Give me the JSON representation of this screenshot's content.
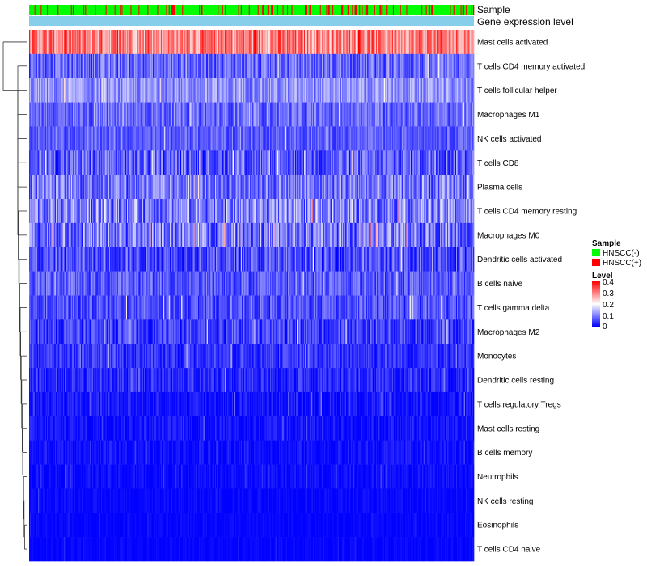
{
  "chart_data": {
    "type": "heatmap",
    "title": "",
    "annotation_tracks": [
      {
        "label": "Sample",
        "kind": "categorical"
      },
      {
        "label": "Gene expression level",
        "kind": "constant"
      }
    ],
    "rows": [
      {
        "label": "Mast cells activated",
        "mean": 0.3,
        "spread": 0.08
      },
      {
        "label": "T cells CD4 memory activated",
        "mean": 0.08,
        "spread": 0.06
      },
      {
        "label": "T cells follicular helper",
        "mean": 0.11,
        "spread": 0.05
      },
      {
        "label": "Macrophages M1",
        "mean": 0.08,
        "spread": 0.05
      },
      {
        "label": "NK cells activated",
        "mean": 0.07,
        "spread": 0.04
      },
      {
        "label": "T cells CD8",
        "mean": 0.07,
        "spread": 0.07
      },
      {
        "label": "Plasma cells",
        "mean": 0.09,
        "spread": 0.07
      },
      {
        "label": "T cells CD4 memory resting",
        "mean": 0.1,
        "spread": 0.08
      },
      {
        "label": "Macrophages M0",
        "mean": 0.09,
        "spread": 0.08
      },
      {
        "label": "Dendritic cells activated",
        "mean": 0.06,
        "spread": 0.06
      },
      {
        "label": "B cells naive",
        "mean": 0.07,
        "spread": 0.05
      },
      {
        "label": "T cells gamma delta",
        "mean": 0.06,
        "spread": 0.05
      },
      {
        "label": "Macrophages M2",
        "mean": 0.05,
        "spread": 0.05
      },
      {
        "label": "Monocytes",
        "mean": 0.04,
        "spread": 0.04
      },
      {
        "label": "Dendritic cells resting",
        "mean": 0.03,
        "spread": 0.04
      },
      {
        "label": "T cells regulatory  Tregs",
        "mean": 0.015,
        "spread": 0.03
      },
      {
        "label": "Mast cells resting",
        "mean": 0.012,
        "spread": 0.03
      },
      {
        "label": "B cells memory",
        "mean": 0.01,
        "spread": 0.025
      },
      {
        "label": "Neutrophils",
        "mean": 0.008,
        "spread": 0.02
      },
      {
        "label": "NK cells resting",
        "mean": 0.005,
        "spread": 0.015
      },
      {
        "label": "Eosinophils",
        "mean": 0.003,
        "spread": 0.012
      },
      {
        "label": "T cells CD4 naive",
        "mean": 0.003,
        "spread": 0.012
      }
    ],
    "n_columns": 500,
    "positive_fraction": 0.2,
    "value_range": [
      0,
      0.4
    ],
    "dendrogram": "rows, left side",
    "colors": {
      "low": "#0000ff",
      "mid": "#ffffff",
      "high": "#ff0000",
      "negative": "#00ff00",
      "positive": "#ff0000",
      "expression_track": "#87ceeb"
    }
  },
  "legend": {
    "sample": {
      "title": "Sample",
      "items": [
        {
          "label": "HNSCC(-)",
          "color": "#00ff00"
        },
        {
          "label": "HNSCC(+)",
          "color": "#ff0000"
        }
      ]
    },
    "level": {
      "title": "Level",
      "ticks": [
        "0.4",
        "0.3",
        "0.2",
        "0.1",
        "0"
      ]
    }
  }
}
